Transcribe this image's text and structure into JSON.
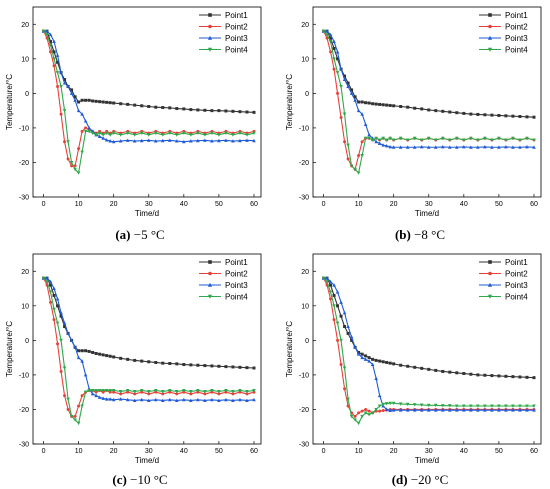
{
  "colors": {
    "Point1": "#333333",
    "Point2": "#e8413a",
    "Point3": "#1f5bd6",
    "Point4": "#2ea84a"
  },
  "chart_data": [
    {
      "type": "line",
      "panel": "a",
      "caption": "(a) −5 °C",
      "caption_letter": "(a)",
      "caption_text": "−5 °C",
      "xlabel": "Time/d",
      "ylabel": "Temperature/°C",
      "xlim": [
        -3,
        62
      ],
      "ylim": [
        -30,
        25
      ],
      "xticks": [
        0,
        10,
        20,
        30,
        40,
        50,
        60
      ],
      "yticks": [
        -30,
        -20,
        -10,
        0,
        10,
        20
      ],
      "legend_position": "top-right",
      "x": [
        0,
        1,
        2,
        3,
        4,
        5,
        6,
        7,
        8,
        9,
        10,
        11,
        12,
        13,
        14,
        15,
        16,
        17,
        18,
        19,
        20,
        22,
        24,
        26,
        28,
        30,
        32,
        34,
        36,
        38,
        40,
        42,
        44,
        46,
        48,
        50,
        52,
        54,
        56,
        58,
        60
      ],
      "series": [
        {
          "name": "Point1",
          "marker": "square",
          "values": [
            18,
            18,
            15,
            12,
            9,
            6,
            4,
            2,
            1,
            -1,
            -2.5,
            -2,
            -2,
            -2,
            -2.2,
            -2.3,
            -2.4,
            -2.5,
            -2.6,
            -2.7,
            -2.8,
            -3,
            -3.2,
            -3.4,
            -3.6,
            -3.8,
            -4,
            -4.1,
            -4.2,
            -4.4,
            -4.5,
            -4.7,
            -4.8,
            -4.9,
            -5,
            -5,
            -5.1,
            -5.2,
            -5.3,
            -5.4,
            -5.5
          ]
        },
        {
          "name": "Point2",
          "marker": "circle",
          "values": [
            18,
            16,
            12,
            8,
            2,
            -6,
            -14,
            -19,
            -21,
            -21,
            -16,
            -11,
            -10,
            -10.5,
            -11,
            -11.5,
            -11,
            -11.5,
            -11,
            -11.5,
            -11,
            -11.5,
            -11,
            -11.5,
            -11,
            -11.5,
            -11,
            -11.5,
            -11,
            -11.5,
            -11,
            -11.5,
            -11,
            -11.5,
            -11,
            -11.5,
            -11,
            -11.5,
            -11,
            -11.5,
            -11
          ]
        },
        {
          "name": "Point3",
          "marker": "triangle",
          "values": [
            18,
            18,
            17,
            15,
            11,
            6,
            3,
            2,
            0,
            -2,
            -5,
            -6,
            -8,
            -10,
            -11,
            -12,
            -12.5,
            -13,
            -13.5,
            -13.8,
            -14,
            -13.8,
            -13.6,
            -13.8,
            -13.7,
            -13.6,
            -13.8,
            -13.7,
            -13.6,
            -13.8,
            -14,
            -13.8,
            -13.7,
            -13.6,
            -13.8,
            -13.7,
            -13.6,
            -13.8,
            -13.7,
            -13.6,
            -13.7
          ]
        },
        {
          "name": "Point4",
          "marker": "inverted-triangle",
          "values": [
            18,
            17,
            14,
            10,
            6,
            2,
            -5,
            -14,
            -20,
            -22,
            -23,
            -17,
            -11,
            -11,
            -11.5,
            -12,
            -11.5,
            -12,
            -11.5,
            -12,
            -11.5,
            -12,
            -11.5,
            -12,
            -11.5,
            -12,
            -11.5,
            -12,
            -11.5,
            -12,
            -11.5,
            -12,
            -11.5,
            -12,
            -11.5,
            -12,
            -11.5,
            -12,
            -11.5,
            -12,
            -11.5
          ]
        }
      ]
    },
    {
      "type": "line",
      "panel": "b",
      "caption": "(b) −8 °C",
      "caption_letter": "(b)",
      "caption_text": "−8 °C",
      "xlabel": "Time/d",
      "ylabel": "Temperature/°C",
      "xlim": [
        -3,
        62
      ],
      "ylim": [
        -30,
        25
      ],
      "xticks": [
        0,
        10,
        20,
        30,
        40,
        50,
        60
      ],
      "yticks": [
        -30,
        -20,
        -10,
        0,
        10,
        20
      ],
      "legend_position": "top-right",
      "x": [
        0,
        1,
        2,
        3,
        4,
        5,
        6,
        7,
        8,
        9,
        10,
        11,
        12,
        13,
        14,
        15,
        16,
        17,
        18,
        19,
        20,
        22,
        24,
        26,
        28,
        30,
        32,
        34,
        36,
        38,
        40,
        42,
        44,
        46,
        48,
        50,
        52,
        54,
        56,
        58,
        60
      ],
      "series": [
        {
          "name": "Point1",
          "marker": "square",
          "values": [
            18,
            18,
            16,
            13,
            10,
            7,
            5,
            3,
            1,
            -1,
            -2.5,
            -2.5,
            -2.7,
            -2.8,
            -3,
            -3.1,
            -3.2,
            -3.3,
            -3.4,
            -3.5,
            -3.6,
            -3.8,
            -4,
            -4.3,
            -4.5,
            -4.8,
            -5,
            -5.2,
            -5.4,
            -5.6,
            -5.8,
            -6,
            -6.1,
            -6.2,
            -6.3,
            -6.4,
            -6.5,
            -6.6,
            -6.7,
            -6.8,
            -6.9
          ]
        },
        {
          "name": "Point2",
          "marker": "circle",
          "values": [
            18,
            16,
            12,
            7,
            0,
            -7,
            -14,
            -19,
            -21,
            -22,
            -18,
            -14,
            -13,
            -13,
            -13.5,
            -13,
            -13.5,
            -13,
            -13.5,
            -13,
            -13.5,
            -13,
            -13.5,
            -13,
            -13.5,
            -13,
            -13.5,
            -13,
            -13.5,
            -13,
            -13.5,
            -13,
            -13.5,
            -13,
            -13.5,
            -13,
            -13.5,
            -13,
            -13.5,
            -13,
            -13.5
          ]
        },
        {
          "name": "Point3",
          "marker": "triangle",
          "values": [
            18,
            18,
            17,
            15,
            12,
            7,
            4,
            2,
            0,
            -2,
            -5,
            -6,
            -9,
            -12,
            -13,
            -14,
            -14.5,
            -15,
            -15.2,
            -15.5,
            -15.6,
            -15.6,
            -15.6,
            -15.6,
            -15.5,
            -15.6,
            -15.6,
            -15.5,
            -15.6,
            -15.6,
            -15.5,
            -15.6,
            -15.6,
            -15.5,
            -15.6,
            -15.6,
            -15.5,
            -15.6,
            -15.6,
            -15.5,
            -15.6
          ]
        },
        {
          "name": "Point4",
          "marker": "inverted-triangle",
          "values": [
            18,
            17,
            15,
            10,
            6,
            2,
            -6,
            -15,
            -21,
            -22,
            -23,
            -18,
            -13,
            -13,
            -13.5,
            -13,
            -13.5,
            -13,
            -13.5,
            -13,
            -13.5,
            -13,
            -13.5,
            -13,
            -13.5,
            -13,
            -13.5,
            -13,
            -13.5,
            -13,
            -13.5,
            -13,
            -13.5,
            -13,
            -13.5,
            -13,
            -13.5,
            -13,
            -13.5,
            -13,
            -13.5
          ]
        }
      ]
    },
    {
      "type": "line",
      "panel": "c",
      "caption": "(c) −10 °C",
      "caption_letter": "(c)",
      "caption_text": "−10 °C",
      "xlabel": "Time/d",
      "ylabel": "Temperature/°C",
      "xlim": [
        -3,
        62
      ],
      "ylim": [
        -30,
        25
      ],
      "xticks": [
        0,
        10,
        20,
        30,
        40,
        50,
        60
      ],
      "yticks": [
        -30,
        -20,
        -10,
        0,
        10,
        20
      ],
      "legend_position": "top-right",
      "x": [
        0,
        1,
        2,
        3,
        4,
        5,
        6,
        7,
        8,
        9,
        10,
        11,
        12,
        13,
        14,
        15,
        16,
        17,
        18,
        19,
        20,
        22,
        24,
        26,
        28,
        30,
        32,
        34,
        36,
        38,
        40,
        42,
        44,
        46,
        48,
        50,
        52,
        54,
        56,
        58,
        60
      ],
      "series": [
        {
          "name": "Point1",
          "marker": "square",
          "values": [
            18,
            18,
            16,
            13,
            10,
            7,
            4,
            2,
            0,
            -2,
            -3,
            -3,
            -3,
            -3.2,
            -3.5,
            -3.8,
            -4,
            -4.2,
            -4.4,
            -4.6,
            -4.8,
            -5.2,
            -5.5,
            -5.8,
            -6,
            -6.2,
            -6.4,
            -6.6,
            -6.7,
            -6.8,
            -7,
            -7.1,
            -7.2,
            -7.3,
            -7.4,
            -7.5,
            -7.6,
            -7.7,
            -7.8,
            -7.9,
            -8
          ]
        },
        {
          "name": "Point2",
          "marker": "circle",
          "values": [
            18,
            16,
            11,
            6,
            -1,
            -9,
            -16,
            -20,
            -22,
            -22,
            -19,
            -16,
            -15,
            -14.5,
            -14.5,
            -15,
            -14.5,
            -15,
            -14.5,
            -15,
            -15,
            -15.5,
            -15,
            -15.5,
            -15,
            -15.5,
            -15,
            -15.5,
            -15,
            -15.5,
            -15,
            -15.5,
            -15,
            -15.5,
            -15,
            -15.5,
            -15,
            -15.5,
            -15,
            -15.5,
            -15
          ]
        },
        {
          "name": "Point3",
          "marker": "triangle",
          "values": [
            18,
            18,
            17,
            15,
            12,
            8,
            5,
            2,
            0,
            -2,
            -5,
            -6,
            -10,
            -14,
            -15.5,
            -16,
            -16.5,
            -16.8,
            -17,
            -17,
            -17.2,
            -17,
            -17.2,
            -17.4,
            -17.2,
            -17.4,
            -17.2,
            -17.4,
            -17.2,
            -17.4,
            -17.2,
            -17.4,
            -17.2,
            -17.4,
            -17.2,
            -17.4,
            -17.2,
            -17.4,
            -17.2,
            -17.4,
            -17.2
          ]
        },
        {
          "name": "Point4",
          "marker": "inverted-triangle",
          "values": [
            18,
            17,
            14,
            9,
            5,
            0,
            -8,
            -17,
            -22,
            -23,
            -24,
            -19,
            -15,
            -14.5,
            -14.5,
            -14.5,
            -14.5,
            -14.5,
            -14.5,
            -14.5,
            -14.5,
            -14.8,
            -14.5,
            -14.8,
            -14.5,
            -14.8,
            -14.5,
            -14.8,
            -14.5,
            -14.8,
            -14.5,
            -14.8,
            -14.5,
            -14.8,
            -14.5,
            -14.8,
            -14.5,
            -14.8,
            -14.5,
            -14.8,
            -14.5
          ]
        }
      ]
    },
    {
      "type": "line",
      "panel": "d",
      "caption": "(d) −20 °C",
      "caption_letter": "(d)",
      "caption_text": "−20 °C",
      "xlabel": "Time/d",
      "ylabel": "Temperature/°C",
      "xlim": [
        -3,
        62
      ],
      "ylim": [
        -30,
        25
      ],
      "xticks": [
        0,
        10,
        20,
        30,
        40,
        50,
        60
      ],
      "yticks": [
        -30,
        -20,
        -10,
        0,
        10,
        20
      ],
      "legend_position": "top-right",
      "x": [
        0,
        1,
        2,
        3,
        4,
        5,
        6,
        7,
        8,
        9,
        10,
        11,
        12,
        13,
        14,
        15,
        16,
        17,
        18,
        19,
        20,
        22,
        24,
        26,
        28,
        30,
        32,
        34,
        36,
        38,
        40,
        42,
        44,
        46,
        48,
        50,
        52,
        54,
        56,
        58,
        60
      ],
      "series": [
        {
          "name": "Point1",
          "marker": "square",
          "values": [
            18,
            18,
            16,
            13,
            10,
            7,
            4,
            2,
            0,
            -2,
            -3.5,
            -4,
            -4.5,
            -5,
            -5.5,
            -5.8,
            -6,
            -6.2,
            -6.4,
            -6.6,
            -6.8,
            -7.2,
            -7.5,
            -7.8,
            -8.1,
            -8.4,
            -8.7,
            -9,
            -9.2,
            -9.4,
            -9.6,
            -9.8,
            -10,
            -10.1,
            -10.2,
            -10.3,
            -10.4,
            -10.5,
            -10.6,
            -10.7,
            -10.8
          ]
        },
        {
          "name": "Point2",
          "marker": "circle",
          "values": [
            18,
            16,
            12,
            6,
            0,
            -7,
            -14,
            -19,
            -21,
            -22,
            -21,
            -20.5,
            -20,
            -20.5,
            -21,
            -20.5,
            -20.5,
            -20.3,
            -20.2,
            -20,
            -20,
            -20,
            -20,
            -20,
            -20,
            -20,
            -20,
            -20,
            -20,
            -20,
            -20,
            -20,
            -20,
            -20,
            -20,
            -20,
            -20,
            -20,
            -20,
            -20,
            -20
          ]
        },
        {
          "name": "Point3",
          "marker": "triangle",
          "values": [
            18,
            18,
            17,
            16,
            14,
            11,
            8,
            4,
            1,
            -2,
            -4,
            -5,
            -5.5,
            -6,
            -7,
            -11,
            -16,
            -19,
            -20,
            -20.3,
            -20.2,
            -20.2,
            -20.2,
            -20.2,
            -20.2,
            -20.2,
            -20.2,
            -20.2,
            -20.2,
            -20.2,
            -20.2,
            -20.2,
            -20.2,
            -20.2,
            -20.2,
            -20.2,
            -20.2,
            -20.2,
            -20.2,
            -20.2,
            -20.2
          ]
        },
        {
          "name": "Point4",
          "marker": "inverted-triangle",
          "values": [
            18,
            17,
            14,
            10,
            5,
            0,
            -8,
            -17,
            -22,
            -23,
            -24,
            -22,
            -21,
            -21.5,
            -21,
            -20,
            -19,
            -18.5,
            -18.3,
            -18.2,
            -18.2,
            -18.4,
            -18.5,
            -18.6,
            -18.7,
            -18.8,
            -18.8,
            -18.9,
            -18.9,
            -19,
            -19,
            -19,
            -19,
            -19,
            -19,
            -19,
            -19,
            -19,
            -19,
            -19,
            -19
          ]
        }
      ]
    }
  ]
}
